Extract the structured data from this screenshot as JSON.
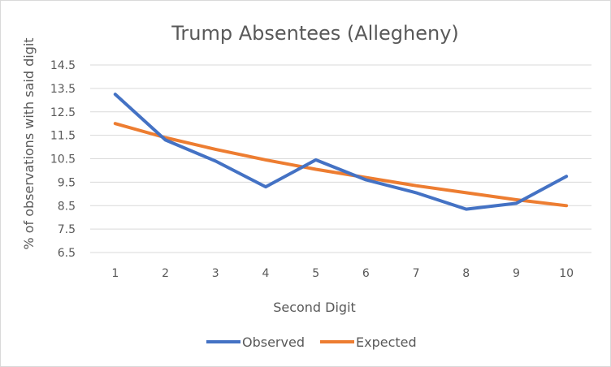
{
  "chart_data": {
    "type": "line",
    "title": "Trump Absentees (Allegheny)",
    "xlabel": "Second Digit",
    "ylabel": "% of observations with said digit",
    "categories": [
      "1",
      "2",
      "3",
      "4",
      "5",
      "6",
      "7",
      "8",
      "9",
      "10"
    ],
    "ylim": [
      6.5,
      14.5
    ],
    "yticks": [
      "6.5",
      "7.5",
      "8.5",
      "9.5",
      "10.5",
      "11.5",
      "12.5",
      "13.5",
      "14.5"
    ],
    "grid": true,
    "legend_position": "bottom",
    "series": [
      {
        "name": "Observed",
        "color": "#4472c4",
        "values": [
          13.25,
          11.3,
          10.4,
          9.3,
          10.45,
          9.6,
          9.05,
          8.35,
          8.6,
          9.75
        ]
      },
      {
        "name": "Expected",
        "color": "#ed7d31",
        "values": [
          12.0,
          11.4,
          10.9,
          10.45,
          10.05,
          9.7,
          9.35,
          9.05,
          8.75,
          8.5
        ]
      }
    ]
  }
}
